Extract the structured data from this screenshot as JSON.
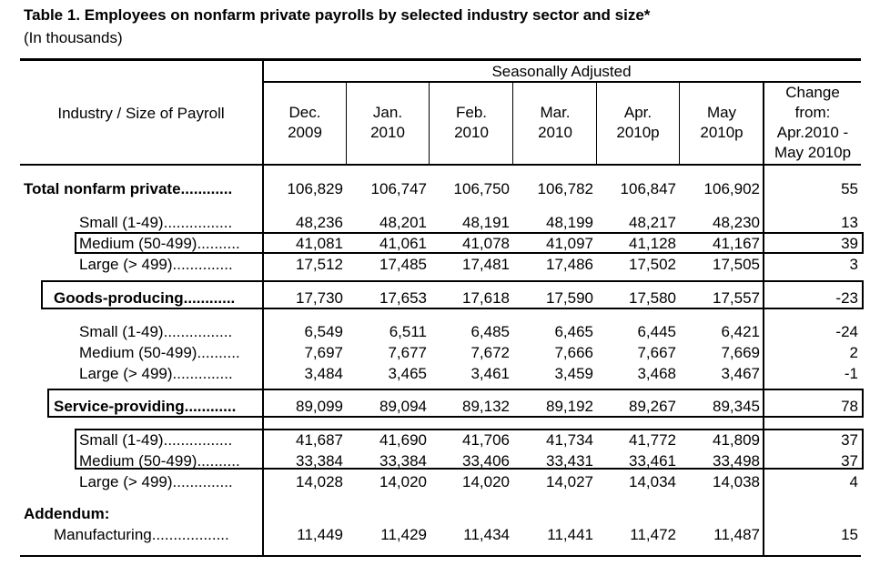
{
  "title": "Table 1.  Employees on nonfarm private payrolls by selected industry sector and size*",
  "subtitle": "(In thousands)",
  "header": {
    "group": "Seasonally Adjusted",
    "stub": "Industry / Size of Payroll",
    "columns": [
      [
        "Dec.",
        "2009"
      ],
      [
        "Jan.",
        "2010"
      ],
      [
        "Feb.",
        "2010"
      ],
      [
        "Mar.",
        "2010"
      ],
      [
        "Apr.",
        "2010p"
      ],
      [
        "May",
        "2010p"
      ],
      [
        "Change",
        "from:",
        "Apr.2010 -",
        "May 2010p"
      ]
    ]
  },
  "rows": [
    {
      "label": "Total nonfarm private",
      "leader": "............",
      "values": [
        "106,829",
        "106,747",
        "106,750",
        "106,782",
        "106,847",
        "106,902",
        "55"
      ]
    },
    {
      "label": "Small (1-49)",
      "leader": "................",
      "values": [
        "48,236",
        "48,201",
        "48,191",
        "48,199",
        "48,217",
        "48,230",
        "13"
      ]
    },
    {
      "label": "Medium (50-499)",
      "leader": "..........",
      "values": [
        "41,081",
        "41,061",
        "41,078",
        "41,097",
        "41,128",
        "41,167",
        "39"
      ]
    },
    {
      "label": "Large (> 499)",
      "leader": "..............",
      "values": [
        "17,512",
        "17,485",
        "17,481",
        "17,486",
        "17,502",
        "17,505",
        "3"
      ]
    },
    {
      "label": "Goods-producing",
      "leader": "............",
      "values": [
        "17,730",
        "17,653",
        "17,618",
        "17,590",
        "17,580",
        "17,557",
        "-23"
      ]
    },
    {
      "label": "Small (1-49)",
      "leader": "................",
      "values": [
        "6,549",
        "6,511",
        "6,485",
        "6,465",
        "6,445",
        "6,421",
        "-24"
      ]
    },
    {
      "label": "Medium (50-499)",
      "leader": "..........",
      "values": [
        "7,697",
        "7,677",
        "7,672",
        "7,666",
        "7,667",
        "7,669",
        "2"
      ]
    },
    {
      "label": "Large (> 499)",
      "leader": "..............",
      "values": [
        "3,484",
        "3,465",
        "3,461",
        "3,459",
        "3,468",
        "3,467",
        "-1"
      ]
    },
    {
      "label": "Service-providing",
      "leader": "............",
      "values": [
        "89,099",
        "89,094",
        "89,132",
        "89,192",
        "89,267",
        "89,345",
        "78"
      ]
    },
    {
      "label": "Small (1-49)",
      "leader": "................",
      "values": [
        "41,687",
        "41,690",
        "41,706",
        "41,734",
        "41,772",
        "41,809",
        "37"
      ]
    },
    {
      "label": "Medium (50-499)",
      "leader": "..........",
      "values": [
        "33,384",
        "33,384",
        "33,406",
        "33,431",
        "33,461",
        "33,498",
        "37"
      ]
    },
    {
      "label": "Large (> 499)",
      "leader": "..............",
      "values": [
        "14,028",
        "14,020",
        "14,020",
        "14,027",
        "14,034",
        "14,038",
        "4"
      ]
    },
    {
      "label": "Manufacturing",
      "leader": "..................",
      "values": [
        "11,449",
        "11,429",
        "11,434",
        "11,441",
        "11,472",
        "11,487",
        "15"
      ]
    }
  ],
  "addendum_label": "Addendum:"
}
